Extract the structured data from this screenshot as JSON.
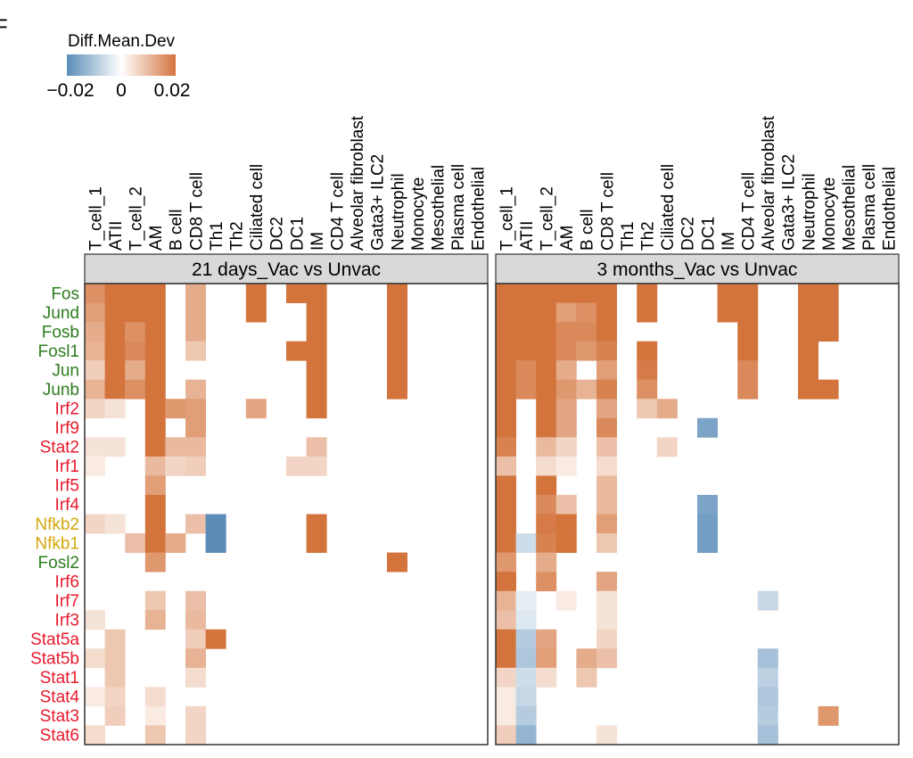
{
  "panel_label": "F",
  "chart_data": {
    "type": "heatmap",
    "legend": {
      "title": "Diff.Mean.Dev",
      "ticks": [
        "−0.02",
        "0",
        "0.02"
      ],
      "range": [
        -0.02,
        0.02
      ],
      "colors": {
        "low": "#5b8db8",
        "mid": "#ffffff",
        "high": "#d4743d"
      },
      "placement": "top-left"
    },
    "columns": [
      "T_cell_1",
      "ATII",
      "T_cell_2",
      "AM",
      "B cell",
      "CD8 T cell",
      "Th1",
      "Th2",
      "Ciliated cell",
      "DC2",
      "DC1",
      "IM",
      "CD4 T cell",
      "Alveolar fibroblast",
      "Gata3+ ILC2",
      "Neutrophil",
      "Monocyte",
      "Mesothelial",
      "Plasma cell",
      "Endothelial"
    ],
    "rows": [
      {
        "label": "Fos",
        "color": "#2e7d1e"
      },
      {
        "label": "Jund",
        "color": "#2e7d1e"
      },
      {
        "label": "Fosb",
        "color": "#2e7d1e"
      },
      {
        "label": "Fosl1",
        "color": "#2e7d1e"
      },
      {
        "label": "Jun",
        "color": "#2e7d1e"
      },
      {
        "label": "Junb",
        "color": "#2e7d1e"
      },
      {
        "label": "Irf2",
        "color": "#e8192c"
      },
      {
        "label": "Irf9",
        "color": "#e8192c"
      },
      {
        "label": "Stat2",
        "color": "#e8192c"
      },
      {
        "label": "Irf1",
        "color": "#e8192c"
      },
      {
        "label": "Irf5",
        "color": "#e8192c"
      },
      {
        "label": "Irf4",
        "color": "#e8192c"
      },
      {
        "label": "Nfkb2",
        "color": "#d4a80c"
      },
      {
        "label": "Nfkb1",
        "color": "#d4a80c"
      },
      {
        "label": "Fosl2",
        "color": "#2e7d1e"
      },
      {
        "label": "Irf6",
        "color": "#e8192c"
      },
      {
        "label": "Irf7",
        "color": "#e8192c"
      },
      {
        "label": "Irf3",
        "color": "#e8192c"
      },
      {
        "label": "Stat5a",
        "color": "#e8192c"
      },
      {
        "label": "Stat5b",
        "color": "#e8192c"
      },
      {
        "label": "Stat1",
        "color": "#e8192c"
      },
      {
        "label": "Stat4",
        "color": "#e8192c"
      },
      {
        "label": "Stat3",
        "color": "#e8192c"
      },
      {
        "label": "Stat6",
        "color": "#e8192c"
      }
    ],
    "panels": [
      {
        "title": "21 days_Vac vs Unvac",
        "values": [
          [
            0.016,
            0.02,
            0.02,
            0.02,
            0,
            0.012,
            0,
            0,
            0.02,
            0,
            0.02,
            0.02,
            0,
            0,
            0,
            0.02,
            0,
            0,
            0,
            0
          ],
          [
            0.014,
            0.02,
            0.02,
            0.02,
            0,
            0.012,
            0,
            0,
            0.02,
            0,
            0,
            0.02,
            0,
            0,
            0,
            0.02,
            0,
            0,
            0,
            0
          ],
          [
            0.012,
            0.02,
            0.016,
            0.02,
            0,
            0.012,
            0,
            0,
            0,
            0,
            0,
            0.02,
            0,
            0,
            0,
            0.02,
            0,
            0,
            0,
            0
          ],
          [
            0.011,
            0.02,
            0.017,
            0.02,
            0,
            0.008,
            0,
            0,
            0,
            0,
            0.02,
            0.02,
            0,
            0,
            0,
            0.02,
            0,
            0,
            0,
            0
          ],
          [
            0.007,
            0.02,
            0.012,
            0.02,
            0,
            0,
            0,
            0,
            0,
            0,
            0,
            0.02,
            0,
            0,
            0,
            0.02,
            0,
            0,
            0,
            0
          ],
          [
            0.011,
            0.02,
            0.016,
            0.02,
            0,
            0.011,
            0,
            0,
            0,
            0,
            0,
            0.02,
            0,
            0,
            0,
            0.02,
            0,
            0,
            0,
            0
          ],
          [
            0.006,
            0.004,
            0,
            0.02,
            0.015,
            0.014,
            0,
            0,
            0.013,
            0,
            0,
            0.02,
            0,
            0,
            0,
            0,
            0,
            0,
            0,
            0
          ],
          [
            0,
            0,
            0,
            0.02,
            0,
            0.014,
            0,
            0,
            0,
            0,
            0,
            0,
            0,
            0,
            0,
            0,
            0,
            0,
            0,
            0
          ],
          [
            0.004,
            0.004,
            0,
            0.02,
            0.01,
            0.01,
            0,
            0,
            0,
            0,
            0,
            0.009,
            0,
            0,
            0,
            0,
            0,
            0,
            0,
            0
          ],
          [
            0.003,
            0,
            0,
            0.01,
            0.006,
            0.007,
            0,
            0,
            0,
            0,
            0.006,
            0.006,
            0,
            0,
            0,
            0,
            0,
            0,
            0,
            0
          ],
          [
            0,
            0,
            0,
            0.014,
            0,
            0,
            0,
            0,
            0,
            0,
            0,
            0,
            0,
            0,
            0,
            0,
            0,
            0,
            0,
            0
          ],
          [
            0,
            0,
            0,
            0.02,
            0,
            0,
            0,
            0,
            0,
            0,
            0,
            0,
            0,
            0,
            0,
            0,
            0,
            0,
            0,
            0
          ],
          [
            0.006,
            0.004,
            0,
            0.02,
            0,
            0.009,
            -0.02,
            0,
            0,
            0,
            0,
            0.02,
            0,
            0,
            0,
            0,
            0,
            0,
            0,
            0
          ],
          [
            0,
            0,
            0.009,
            0.02,
            0.012,
            0,
            -0.02,
            0,
            0,
            0,
            0,
            0.02,
            0,
            0,
            0,
            0,
            0,
            0,
            0,
            0
          ],
          [
            0,
            0,
            0,
            0.015,
            0,
            0,
            0,
            0,
            0,
            0,
            0,
            0,
            0,
            0,
            0,
            0.02,
            0,
            0,
            0,
            0
          ],
          [
            0,
            0,
            0,
            0,
            0,
            0,
            0,
            0,
            0,
            0,
            0,
            0,
            0,
            0,
            0,
            0,
            0,
            0,
            0,
            0
          ],
          [
            0,
            0,
            0,
            0.008,
            0,
            0.009,
            0,
            0,
            0,
            0,
            0,
            0,
            0,
            0,
            0,
            0,
            0,
            0,
            0,
            0
          ],
          [
            0.004,
            0,
            0,
            0.011,
            0,
            0.01,
            0,
            0,
            0,
            0,
            0,
            0,
            0,
            0,
            0,
            0,
            0,
            0,
            0,
            0
          ],
          [
            0,
            0.008,
            0,
            0,
            0,
            0.007,
            0.02,
            0,
            0,
            0,
            0,
            0,
            0,
            0,
            0,
            0,
            0,
            0,
            0,
            0
          ],
          [
            0.005,
            0.008,
            0,
            0,
            0,
            0.011,
            0,
            0,
            0,
            0,
            0,
            0,
            0,
            0,
            0,
            0,
            0,
            0,
            0,
            0
          ],
          [
            0,
            0.008,
            0,
            0,
            0,
            0.005,
            0,
            0,
            0,
            0,
            0,
            0,
            0,
            0,
            0,
            0,
            0,
            0,
            0,
            0
          ],
          [
            0.003,
            0.006,
            0,
            0.005,
            0,
            0,
            0,
            0,
            0,
            0,
            0,
            0,
            0,
            0,
            0,
            0,
            0,
            0,
            0,
            0
          ],
          [
            0,
            0.007,
            0,
            0.003,
            0,
            0.006,
            0,
            0,
            0,
            0,
            0,
            0,
            0,
            0,
            0,
            0,
            0,
            0,
            0,
            0
          ],
          [
            0.005,
            0,
            0,
            0.008,
            0,
            0.006,
            0,
            0,
            0,
            0,
            0,
            0,
            0,
            0,
            0,
            0,
            0,
            0,
            0,
            0
          ]
        ]
      },
      {
        "title": "3 months_Vac vs Unvac",
        "values": [
          [
            0.02,
            0.02,
            0.02,
            0.02,
            0.02,
            0.02,
            0,
            0.02,
            0,
            0,
            0,
            0.02,
            0.02,
            0,
            0,
            0.02,
            0.02,
            0,
            0,
            0
          ],
          [
            0.02,
            0.02,
            0.02,
            0.014,
            0.016,
            0.02,
            0,
            0.02,
            0,
            0,
            0,
            0.02,
            0.02,
            0,
            0,
            0.02,
            0.02,
            0,
            0,
            0
          ],
          [
            0.02,
            0.02,
            0.02,
            0.017,
            0.017,
            0.02,
            0,
            0,
            0,
            0,
            0,
            0,
            0.02,
            0,
            0,
            0.02,
            0.02,
            0,
            0,
            0
          ],
          [
            0.02,
            0.02,
            0.02,
            0.017,
            0.015,
            0.018,
            0,
            0.02,
            0,
            0,
            0,
            0,
            0.02,
            0,
            0,
            0.02,
            0,
            0,
            0,
            0
          ],
          [
            0.02,
            0.017,
            0.02,
            0.012,
            0,
            0.014,
            0,
            0.019,
            0,
            0,
            0,
            0,
            0.017,
            0,
            0,
            0.02,
            0,
            0,
            0,
            0
          ],
          [
            0.02,
            0.017,
            0.02,
            0.015,
            0.011,
            0.018,
            0,
            0.016,
            0,
            0,
            0,
            0,
            0.017,
            0,
            0,
            0.02,
            0.02,
            0,
            0,
            0
          ],
          [
            0.02,
            0,
            0.02,
            0.013,
            0,
            0.013,
            0,
            0.008,
            0.012,
            0,
            0,
            0,
            0,
            0,
            0,
            0,
            0,
            0,
            0,
            0
          ],
          [
            0.02,
            0,
            0.02,
            0.013,
            0,
            0.017,
            0,
            0,
            0,
            0,
            -0.016,
            0,
            0,
            0,
            0,
            0,
            0,
            0,
            0,
            0
          ],
          [
            0.018,
            0,
            0.01,
            0.006,
            0,
            0.009,
            0,
            0,
            0.006,
            0,
            0,
            0,
            0,
            0,
            0,
            0,
            0,
            0,
            0,
            0
          ],
          [
            0.009,
            0,
            0.005,
            0.003,
            0,
            0.005,
            0,
            0,
            0,
            0,
            0,
            0,
            0,
            0,
            0,
            0,
            0,
            0,
            0,
            0
          ],
          [
            0.02,
            0,
            0.02,
            0,
            0,
            0.01,
            0,
            0,
            0,
            0,
            0,
            0,
            0,
            0,
            0,
            0,
            0,
            0,
            0,
            0
          ],
          [
            0.02,
            0,
            0.017,
            0.009,
            0,
            0.01,
            0,
            0,
            0,
            0,
            -0.016,
            0,
            0,
            0,
            0,
            0,
            0,
            0,
            0,
            0
          ],
          [
            0.02,
            0,
            0.019,
            0.02,
            0,
            0.014,
            0,
            0,
            0,
            0,
            -0.017,
            0,
            0,
            0,
            0,
            0,
            0,
            0,
            0,
            0
          ],
          [
            0.02,
            -0.006,
            0.018,
            0.02,
            0,
            0.008,
            0,
            0,
            0,
            0,
            -0.017,
            0,
            0,
            0,
            0,
            0,
            0,
            0,
            0,
            0
          ],
          [
            0.015,
            0,
            0.012,
            0,
            0,
            0,
            0,
            0,
            0,
            0,
            0,
            0,
            0,
            0,
            0,
            0,
            0,
            0,
            0,
            0
          ],
          [
            0.02,
            0,
            0.016,
            0,
            0,
            0.013,
            0,
            0,
            0,
            0,
            0,
            0,
            0,
            0,
            0,
            0,
            0,
            0,
            0,
            0
          ],
          [
            0.011,
            -0.003,
            0,
            0.003,
            0,
            0.004,
            0,
            0,
            0,
            0,
            0,
            0,
            0,
            -0.007,
            0,
            0,
            0,
            0,
            0,
            0
          ],
          [
            0.009,
            -0.004,
            0,
            0,
            0,
            0.004,
            0,
            0,
            0,
            0,
            0,
            0,
            0,
            0,
            0,
            0,
            0,
            0,
            0,
            0
          ],
          [
            0.02,
            -0.009,
            0.013,
            0,
            0,
            0.006,
            0,
            0,
            0,
            0,
            0,
            0,
            0,
            0,
            0,
            0,
            0,
            0,
            0,
            0
          ],
          [
            0.02,
            -0.01,
            0.014,
            0,
            0.012,
            0.009,
            0,
            0,
            0,
            0,
            0,
            0,
            0,
            -0.011,
            0,
            0,
            0,
            0,
            0,
            0
          ],
          [
            0.006,
            -0.006,
            0.005,
            0,
            0.008,
            0,
            0,
            0,
            0,
            0,
            0,
            0,
            0,
            -0.008,
            0,
            0,
            0,
            0,
            0,
            0
          ],
          [
            0.003,
            -0.007,
            0,
            0,
            0,
            0,
            0,
            0,
            0,
            0,
            0,
            0,
            0,
            -0.01,
            0,
            0,
            0,
            0,
            0,
            0
          ],
          [
            0.003,
            -0.009,
            0,
            0,
            0,
            0,
            0,
            0,
            0,
            0,
            0,
            0,
            0,
            -0.009,
            0,
            0,
            0.015,
            0,
            0,
            0
          ],
          [
            0.007,
            -0.013,
            0,
            0,
            0,
            0.004,
            0,
            0,
            0,
            0,
            0,
            0,
            0,
            -0.011,
            0,
            0,
            0,
            0,
            0,
            0
          ]
        ]
      }
    ]
  }
}
